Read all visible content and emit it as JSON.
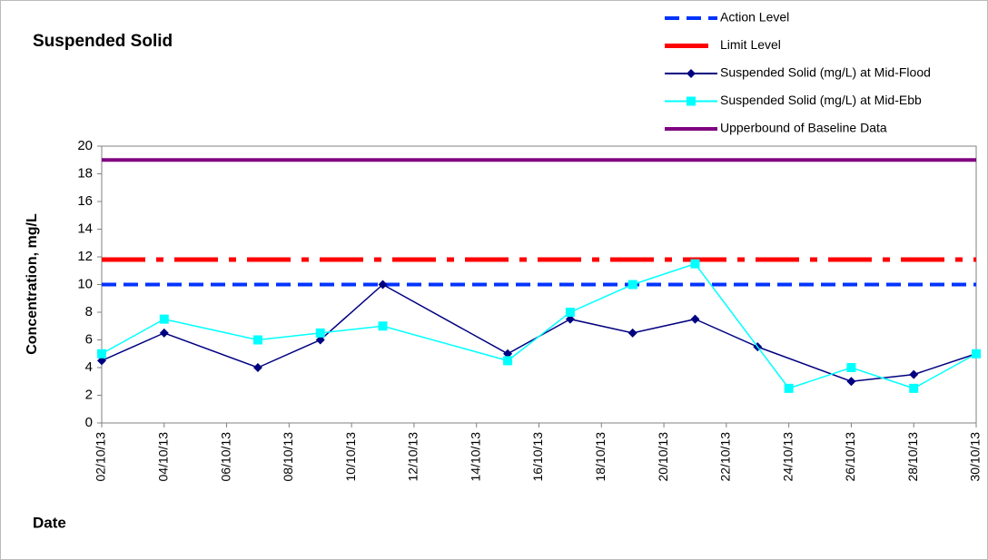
{
  "chart_data": {
    "type": "line",
    "title": "Suspended Solid",
    "xlabel": "Date",
    "ylabel": "Concentration, mg/L",
    "xlim": [
      "02/10/13",
      "30/10/13"
    ],
    "xticks": [
      "02/10/13",
      "04/10/13",
      "06/10/13",
      "08/10/13",
      "10/10/13",
      "12/10/13",
      "14/10/13",
      "16/10/13",
      "18/10/13",
      "20/10/13",
      "22/10/13",
      "24/10/13",
      "26/10/13",
      "28/10/13",
      "30/10/13"
    ],
    "ylim": [
      0,
      20
    ],
    "yticks": [
      0,
      2,
      4,
      6,
      8,
      10,
      12,
      14,
      16,
      18,
      20
    ],
    "levels": [
      {
        "name": "Action Level",
        "color": "#0033ff",
        "style": "dashed",
        "value": 10
      },
      {
        "name": "Limit Level",
        "color": "#ff0000",
        "style": "dash-dot",
        "value": 11.8
      }
    ],
    "series": [
      {
        "name": "Suspended Solid (mg/L) at Mid-Flood",
        "color": "#000080",
        "marker": "diamond",
        "x": [
          "02/10/13",
          "04/10/13",
          "07/10/13",
          "09/10/13",
          "11/10/13",
          "15/10/13",
          "17/10/13",
          "19/10/13",
          "21/10/13",
          "23/10/13",
          "26/10/13",
          "28/10/13",
          "30/10/13"
        ],
        "values": [
          4.5,
          6.5,
          4,
          6,
          10,
          5,
          7.5,
          6.5,
          7.5,
          5.5,
          3,
          3.5,
          5
        ]
      },
      {
        "name": "Suspended Solid (mg/L) at Mid-Ebb",
        "color": "#00ffff",
        "marker": "square",
        "x": [
          "02/10/13",
          "04/10/13",
          "07/10/13",
          "09/10/13",
          "11/10/13",
          "15/10/13",
          "17/10/13",
          "19/10/13",
          "21/10/13",
          "24/10/13",
          "26/10/13",
          "28/10/13",
          "30/10/13"
        ],
        "values": [
          5,
          7.5,
          6,
          6.5,
          7,
          4.5,
          8,
          10,
          11.5,
          2.5,
          4,
          2.5,
          5
        ]
      }
    ],
    "baseline": {
      "name": "Upperbound of Baseline Data",
      "color": "#800080",
      "style": "solid",
      "value": 19
    }
  }
}
